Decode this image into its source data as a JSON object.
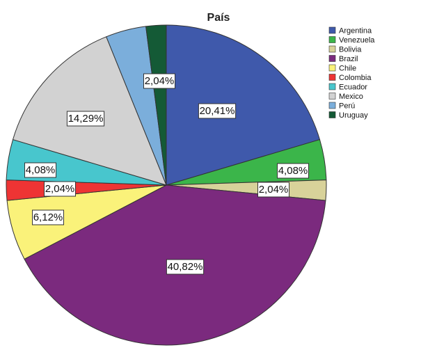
{
  "chart_data": {
    "type": "pie",
    "title": "País",
    "legend_position": "top-right",
    "start_angle_deg": 0,
    "direction": "clockwise",
    "slices": [
      {
        "name": "Argentina",
        "value": 20.41,
        "label": "20,41%",
        "color": "#3F59AB"
      },
      {
        "name": "Venezuela",
        "value": 4.08,
        "label": "4,08%",
        "color": "#3BB54A"
      },
      {
        "name": "Bolivia",
        "value": 2.04,
        "label": "2,04%",
        "color": "#D8D29A"
      },
      {
        "name": "Brazil",
        "value": 40.82,
        "label": "40,82%",
        "color": "#7B2A7E"
      },
      {
        "name": "Chile",
        "value": 6.12,
        "label": "6,12%",
        "color": "#FAF27A"
      },
      {
        "name": "Colombia",
        "value": 2.04,
        "label": "2,04%",
        "color": "#EE3434"
      },
      {
        "name": "Ecuador",
        "value": 4.08,
        "label": "4,08%",
        "color": "#48C6CD"
      },
      {
        "name": "Mexico",
        "value": 14.29,
        "label": "14,29%",
        "color": "#D2D2D2"
      },
      {
        "name": "Perú",
        "value": 4.08,
        "label": "",
        "color": "#7BAEDB"
      },
      {
        "name": "Uruguay",
        "value": 2.04,
        "label": "2,04%",
        "color": "#145A36"
      }
    ]
  }
}
